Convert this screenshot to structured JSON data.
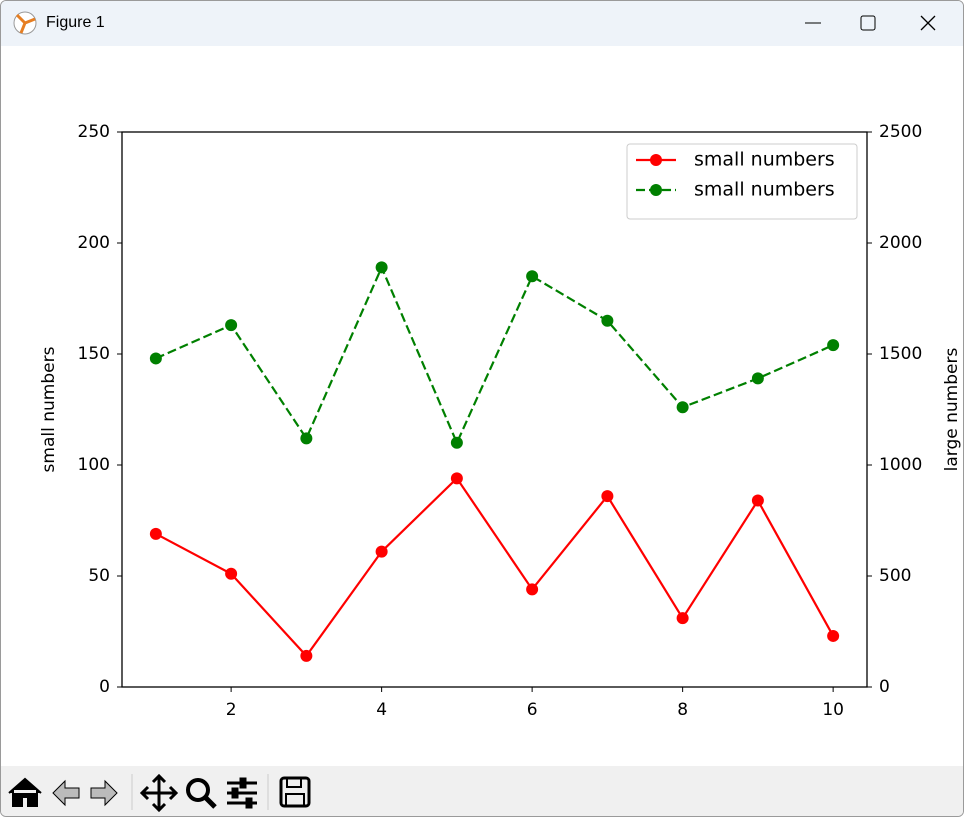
{
  "window": {
    "title": "Figure 1"
  },
  "chart_data": {
    "type": "line",
    "x": [
      1,
      2,
      3,
      4,
      5,
      6,
      7,
      8,
      9,
      10
    ],
    "series": [
      {
        "name": "small numbers",
        "color": "#ff0000",
        "linestyle": "solid",
        "marker": "o",
        "axis": "y",
        "values": [
          69,
          51,
          14,
          61,
          94,
          44,
          86,
          31,
          84,
          23
        ]
      },
      {
        "name": "small numbers",
        "color": "#008000",
        "linestyle": "dashed",
        "marker": "o",
        "axis": "y2",
        "values": [
          1480,
          1630,
          1120,
          1890,
          1100,
          1850,
          1650,
          1260,
          1390,
          1540
        ]
      }
    ],
    "ylabel": "small numbers",
    "y2label": "large numbers",
    "xlim": [
      0.55,
      10.45
    ],
    "xticks": [
      2,
      4,
      6,
      8,
      10
    ],
    "ylim": [
      0,
      250
    ],
    "yticks": [
      0,
      50,
      100,
      150,
      200,
      250
    ],
    "y2lim": [
      0,
      2500
    ],
    "y2ticks": [
      0,
      500,
      1000,
      1500,
      2000,
      2500
    ],
    "legend": "upper right",
    "grid": false
  }
}
